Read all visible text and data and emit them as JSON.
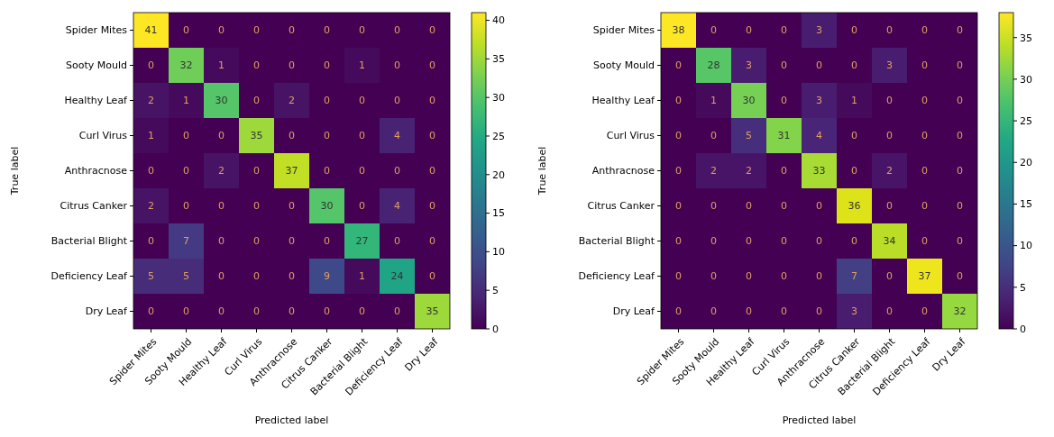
{
  "chart_data": [
    {
      "type": "heatmap",
      "xlabel": "Predicted label",
      "ylabel": "True label",
      "categories": [
        "Spider Mites",
        "Sooty Mould",
        "Healthy Leaf",
        "Curl Virus",
        "Anthracnose",
        "Citrus Canker",
        "Bacterial Blight",
        "Deficiency Leaf",
        "Dry Leaf"
      ],
      "y_categories": [
        "Spider Mites",
        "Sooty Mould",
        "Healthy Leaf",
        "Curl Virus",
        "Anthracnose",
        "Citrus Canker",
        "Bacterial Blight",
        "Deficiency Leaf",
        "Dry Leaf"
      ],
      "cells": [
        [
          41,
          0,
          0,
          0,
          0,
          0,
          0,
          0,
          0
        ],
        [
          0,
          32,
          1,
          0,
          0,
          0,
          1,
          0,
          0
        ],
        [
          2,
          1,
          30,
          0,
          2,
          0,
          0,
          0,
          0
        ],
        [
          1,
          0,
          0,
          35,
          0,
          0,
          0,
          4,
          0
        ],
        [
          0,
          0,
          2,
          0,
          37,
          0,
          0,
          0,
          0
        ],
        [
          2,
          0,
          0,
          0,
          0,
          30,
          0,
          4,
          0
        ],
        [
          0,
          7,
          0,
          0,
          0,
          0,
          27,
          0,
          0
        ],
        [
          5,
          5,
          0,
          0,
          0,
          9,
          1,
          24,
          0
        ],
        [
          0,
          0,
          0,
          0,
          0,
          0,
          0,
          0,
          35
        ]
      ],
      "data_labels": true,
      "clim": [
        0,
        41
      ],
      "cticks": [
        0,
        5,
        10,
        15,
        20,
        25,
        30,
        35,
        40
      ]
    },
    {
      "type": "heatmap",
      "xlabel": "Predicted label",
      "ylabel": "True label",
      "categories": [
        "Spider Mites",
        "Sooty Mould",
        "Healthy Leaf",
        "Curl Virus",
        "Anthracnose",
        "Citrus Canker",
        "Bacterial Blight",
        "Deficiency Leaf",
        "Dry Leaf"
      ],
      "y_categories": [
        "Spider Mites",
        "Sooty Mould",
        "Healthy Leaf",
        "Curl Virus",
        "Anthracnose",
        "Citrus Canker",
        "Bacterial Blight",
        "Deficiency Leaf",
        "Dry Leaf"
      ],
      "cells": [
        [
          38,
          0,
          0,
          0,
          3,
          0,
          0,
          0,
          0
        ],
        [
          0,
          28,
          3,
          0,
          0,
          0,
          3,
          0,
          0
        ],
        [
          0,
          1,
          30,
          0,
          3,
          1,
          0,
          0,
          0
        ],
        [
          0,
          0,
          5,
          31,
          4,
          0,
          0,
          0,
          0
        ],
        [
          0,
          2,
          2,
          0,
          33,
          0,
          2,
          0,
          0
        ],
        [
          0,
          0,
          0,
          0,
          0,
          36,
          0,
          0,
          0
        ],
        [
          0,
          0,
          0,
          0,
          0,
          0,
          34,
          0,
          0
        ],
        [
          0,
          0,
          0,
          0,
          0,
          7,
          0,
          37,
          0
        ],
        [
          0,
          0,
          0,
          0,
          0,
          3,
          0,
          0,
          32
        ]
      ],
      "data_labels": true,
      "clim": [
        0,
        38
      ],
      "cticks": [
        0,
        5,
        10,
        15,
        20,
        25,
        30,
        35
      ]
    }
  ]
}
